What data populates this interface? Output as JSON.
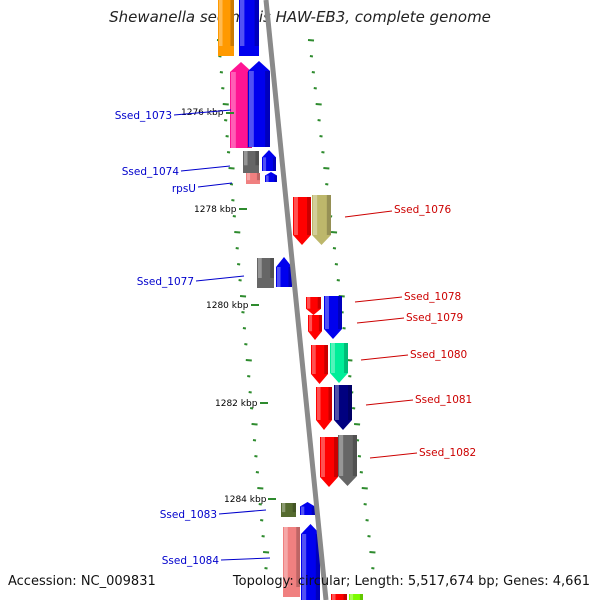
{
  "title": "Shewanella sediminis HAW-EB3, complete genome",
  "footer": {
    "accession": "Accession: NC_009831",
    "topology": "Topology: circular; Length: 5,517,674 bp; Genes: 4,661"
  },
  "colors": {
    "backbone": "#8a8a8a",
    "tick": "#2e8b2e",
    "left_label": "#0000cc",
    "right_label": "#cc0000"
  },
  "kbp_markers": [
    {
      "label": "1276 kbp"
    },
    {
      "label": "1278 kbp"
    },
    {
      "label": "1280 kbp"
    },
    {
      "label": "1282 kbp"
    },
    {
      "label": "1284 kbp"
    }
  ],
  "labels_left": [
    {
      "label": "Ssed_1073"
    },
    {
      "label": "Ssed_1074"
    },
    {
      "label": "rpsU"
    },
    {
      "label": "Ssed_1077"
    },
    {
      "label": "Ssed_1083"
    },
    {
      "label": "Ssed_1084"
    }
  ],
  "labels_right": [
    {
      "label": "Ssed_1076"
    },
    {
      "label": "Ssed_1078"
    },
    {
      "label": "Ssed_1079"
    },
    {
      "label": "Ssed_1080"
    },
    {
      "label": "Ssed_1081"
    },
    {
      "label": "Ssed_1082"
    }
  ],
  "features": [
    {
      "color": "#ff9900",
      "dir": "none"
    },
    {
      "color": "#0000ee",
      "dir": "none"
    },
    {
      "color": "#ff1493",
      "dir": "up"
    },
    {
      "color": "#0000ee",
      "dir": "up"
    },
    {
      "color": "#666666",
      "dir": "none"
    },
    {
      "color": "#0000ee",
      "dir": "up"
    },
    {
      "color": "#f08080",
      "dir": "none"
    },
    {
      "color": "#0000ee",
      "dir": "up"
    },
    {
      "color": "#ff0000",
      "dir": "down"
    },
    {
      "color": "#bdb76b",
      "dir": "down"
    },
    {
      "color": "#666666",
      "dir": "none"
    },
    {
      "color": "#0000ee",
      "dir": "up"
    },
    {
      "color": "#ff0000",
      "dir": "down"
    },
    {
      "color": "#0000ee",
      "dir": "down"
    },
    {
      "color": "#ff0000",
      "dir": "down"
    },
    {
      "color": "#ff0000",
      "dir": "down"
    },
    {
      "color": "#00ee99",
      "dir": "down"
    },
    {
      "color": "#ff0000",
      "dir": "down"
    },
    {
      "color": "#000080",
      "dir": "down"
    },
    {
      "color": "#ff0000",
      "dir": "down"
    },
    {
      "color": "#666666",
      "dir": "down"
    },
    {
      "color": "#556b2f",
      "dir": "none"
    },
    {
      "color": "#0000ee",
      "dir": "up"
    },
    {
      "color": "#f08080",
      "dir": "none"
    },
    {
      "color": "#0000ee",
      "dir": "up"
    },
    {
      "color": "#ff0000",
      "dir": "none"
    },
    {
      "color": "#7cfc00",
      "dir": "none"
    }
  ]
}
